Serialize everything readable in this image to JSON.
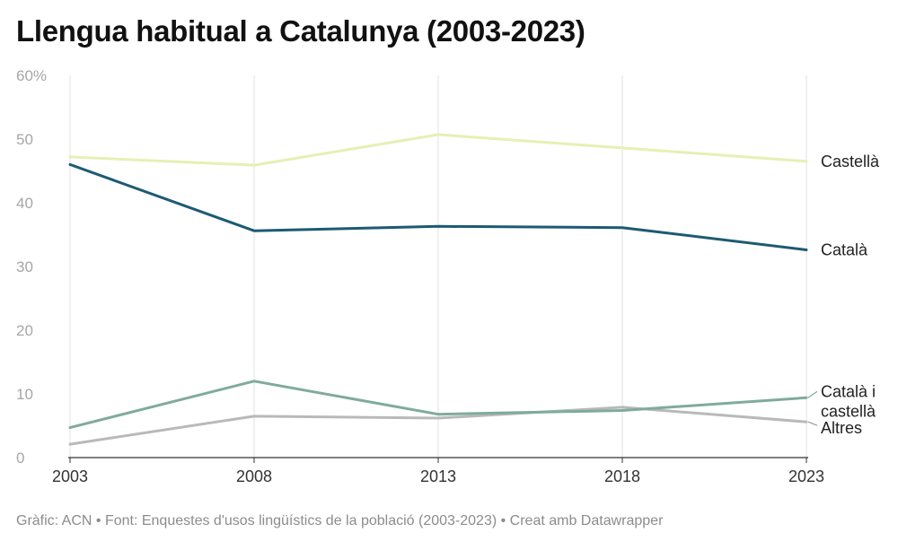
{
  "header": {
    "title": "Llengua habitual a Catalunya (2003-2023)"
  },
  "footer": {
    "text": "Gràfic: ACN • Font: Enquestes d'usos lingüístics de la població (2003-2023) • Creat amb Datawrapper"
  },
  "chart_data": {
    "type": "line",
    "title": "Llengua habitual a Catalunya (2003-2023)",
    "xlabel": "",
    "ylabel": "",
    "x": [
      2003,
      2008,
      2013,
      2018,
      2023
    ],
    "y_tick_labels": [
      "0",
      "10",
      "20",
      "30",
      "40",
      "50",
      "60%"
    ],
    "ylim": [
      0,
      60
    ],
    "grid": "vertical",
    "legend": "inline-right",
    "series": [
      {
        "name": "Castellà",
        "color": "#e6f0b4",
        "values": [
          47.2,
          45.9,
          50.7,
          48.6,
          46.5
        ]
      },
      {
        "name": "Català",
        "color": "#1d5a73",
        "values": [
          46.0,
          35.6,
          36.3,
          36.1,
          32.6
        ]
      },
      {
        "name": "Català i castellà",
        "color": "#7fab9a",
        "values": [
          4.7,
          12.0,
          6.8,
          7.4,
          9.4
        ]
      },
      {
        "name": "Altres",
        "color": "#b9b9b9",
        "values": [
          2.1,
          6.5,
          6.2,
          7.9,
          5.6
        ]
      }
    ]
  }
}
